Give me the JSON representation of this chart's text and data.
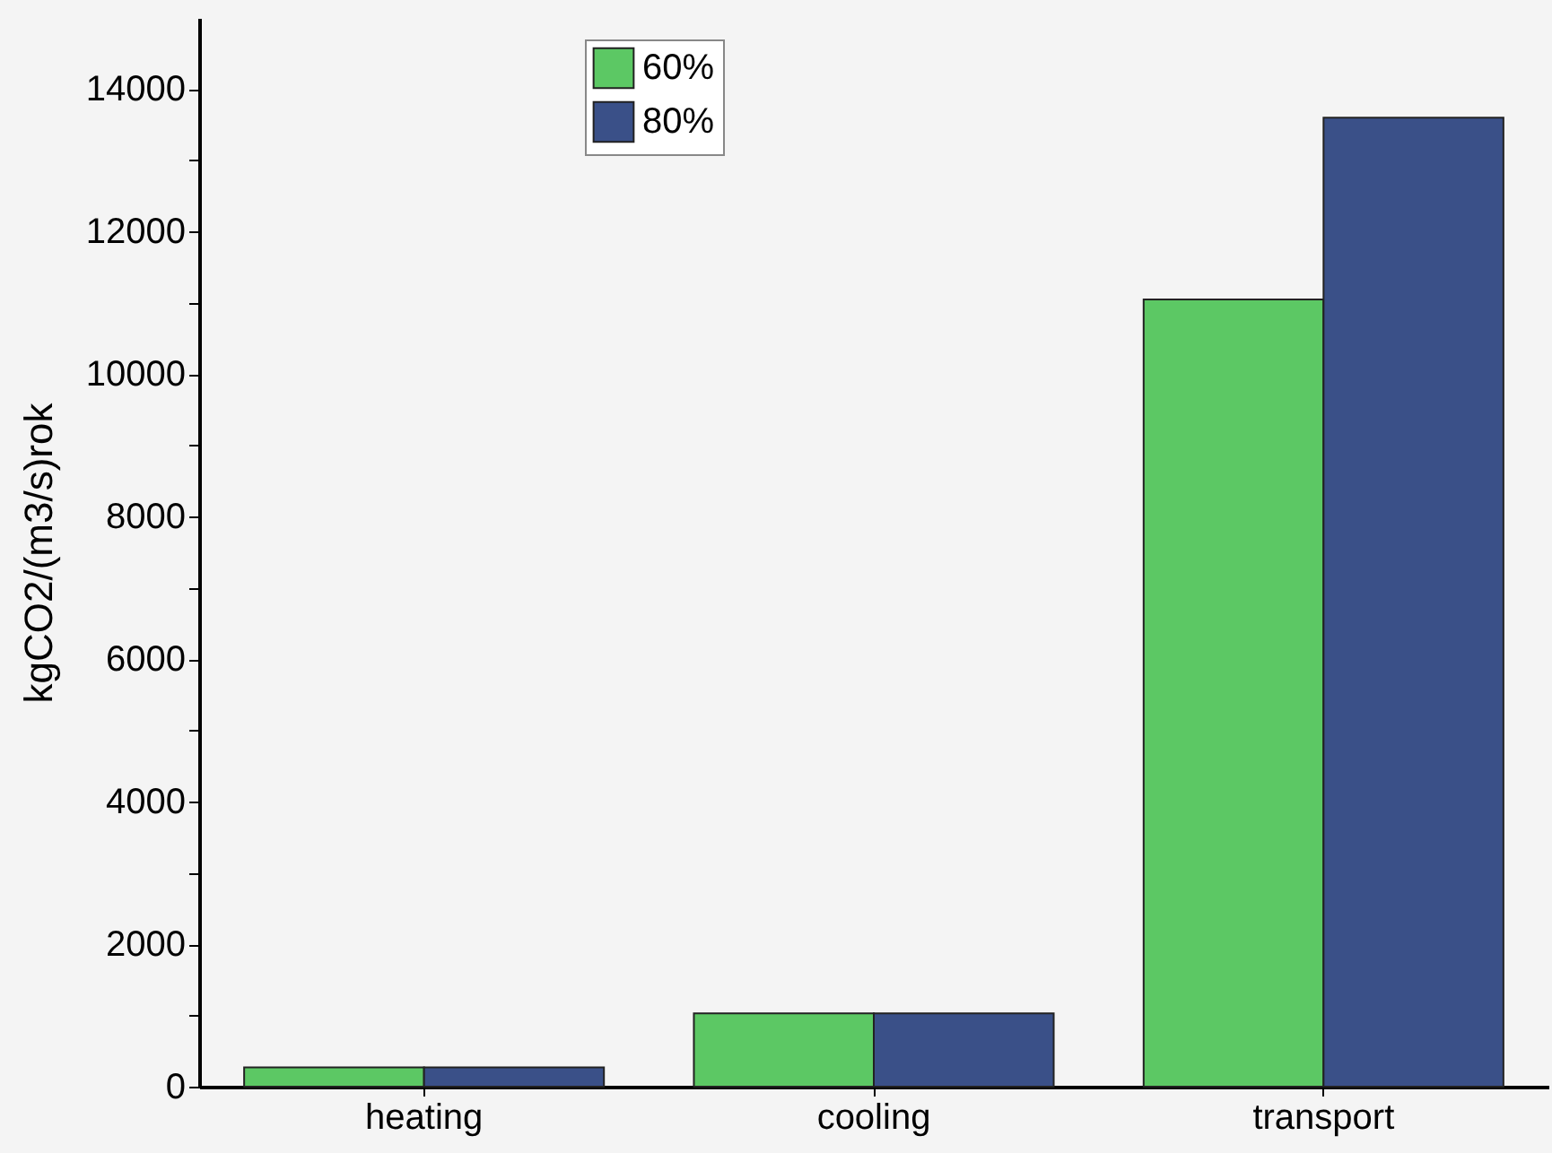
{
  "chart_data": {
    "type": "bar",
    "ylabel": "kgCO2/(m3/s)rok",
    "categories": [
      "heating",
      "cooling",
      "transport"
    ],
    "series": [
      {
        "name": "60%",
        "color": "#5cc864",
        "values": [
          270,
          1030,
          11050
        ]
      },
      {
        "name": "80%",
        "color": "#3a5088",
        "values": [
          270,
          1030,
          13600
        ]
      }
    ],
    "ylim": [
      0,
      15000
    ],
    "yticks": [
      0,
      {
        "value": 1000,
        "label": null
      },
      2000,
      {
        "value": 3000,
        "label": null
      },
      4000,
      {
        "value": 5000,
        "label": null
      },
      6000,
      {
        "value": 7000,
        "label": null
      },
      8000,
      {
        "value": 9000,
        "label": null
      },
      10000,
      {
        "value": 11000,
        "label": null
      },
      12000,
      {
        "value": 13000,
        "label": null
      },
      14000
    ],
    "legend": "top",
    "grid": false
  }
}
